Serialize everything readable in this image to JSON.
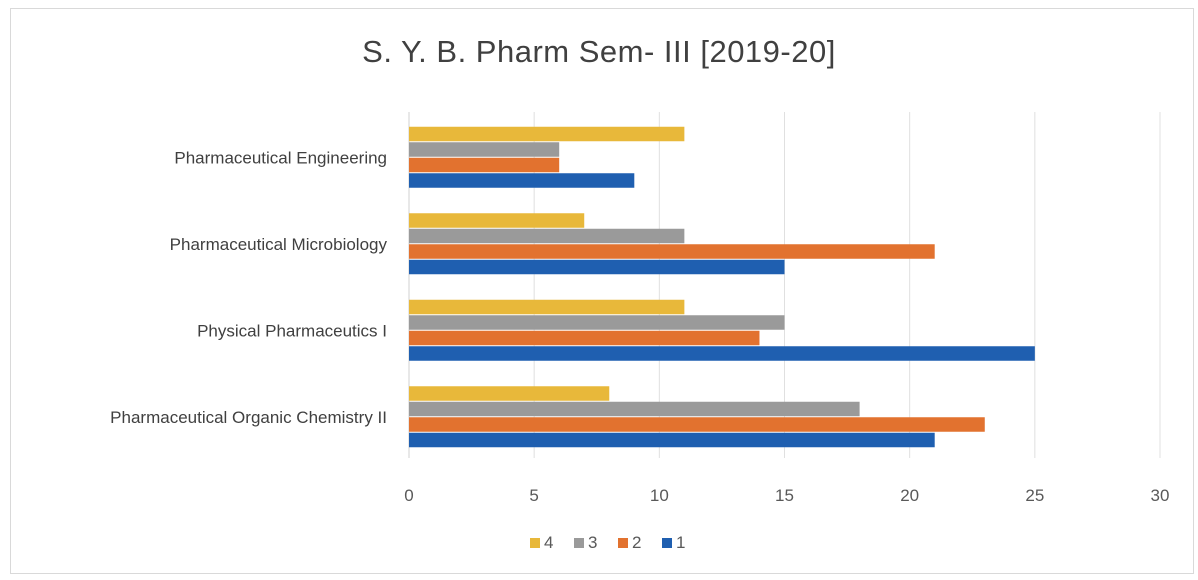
{
  "chart_data": {
    "type": "bar",
    "orientation": "horizontal",
    "title": "S. Y. B. Pharm Sem- III  [2019-20]",
    "xlabel": "",
    "ylabel": "",
    "categories": [
      "Pharmaceutical Organic Chemistry II",
      "Physical Pharmaceutics I",
      "Pharmaceutical Microbiology",
      "Pharmaceutical Engineering"
    ],
    "series": [
      {
        "name": "1",
        "color": "#1f5fb0",
        "values": [
          21,
          25,
          15,
          9
        ]
      },
      {
        "name": "2",
        "color": "#e2722f",
        "values": [
          23,
          14,
          21,
          6
        ]
      },
      {
        "name": "3",
        "color": "#9a9a9a",
        "values": [
          18,
          15,
          11,
          6
        ]
      },
      {
        "name": "4",
        "color": "#e8b83a",
        "values": [
          8,
          11,
          7,
          11
        ]
      }
    ],
    "xlim": [
      0,
      30
    ],
    "xticks": [
      0,
      5,
      10,
      15,
      20,
      25,
      30
    ],
    "grid": "vertical",
    "legend": {
      "position": "bottom",
      "order": [
        "4",
        "3",
        "2",
        "1"
      ]
    }
  }
}
